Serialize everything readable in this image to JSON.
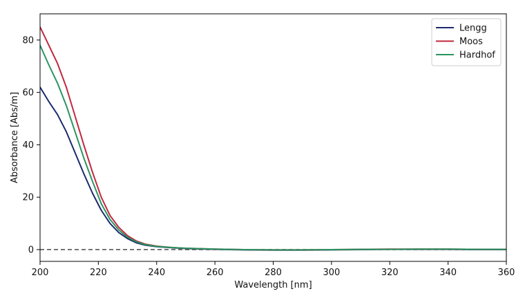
{
  "chart_data": {
    "type": "line",
    "title": "",
    "xlabel": "Wavelength [nm]",
    "ylabel": "Absorbance [Abs/m]",
    "xlim": [
      200,
      360
    ],
    "ylim": [
      -4.5,
      90
    ],
    "xticks": [
      200,
      220,
      240,
      260,
      280,
      300,
      320,
      340,
      360
    ],
    "yticks": [
      0,
      20,
      40,
      60,
      80
    ],
    "grid": false,
    "legend_position": "top-right",
    "baseline": {
      "y": 0,
      "style": "dashed",
      "color": "#555555"
    },
    "series": [
      {
        "name": "Lengg",
        "color": "#1a2a6c",
        "x": [
          200,
          203,
          206,
          209,
          212,
          215,
          218,
          221,
          224,
          227,
          230,
          233,
          236,
          240,
          245,
          250,
          260,
          270,
          280,
          290,
          300,
          310,
          320,
          330,
          340,
          350,
          360
        ],
        "y": [
          62,
          56.5,
          51.5,
          45,
          37,
          29,
          21.5,
          15,
          10,
          6.5,
          4.2,
          2.6,
          1.7,
          1.1,
          0.7,
          0.4,
          0.1,
          -0.1,
          -0.2,
          -0.2,
          -0.1,
          0,
          0.1,
          0.1,
          0.1,
          0,
          0
        ]
      },
      {
        "name": "Moos",
        "color": "#c0283d",
        "x": [
          200,
          203,
          206,
          209,
          212,
          215,
          218,
          221,
          224,
          227,
          230,
          233,
          236,
          240,
          245,
          250,
          260,
          270,
          280,
          290,
          300,
          310,
          320,
          330,
          340,
          350,
          360
        ],
        "y": [
          85,
          78,
          71,
          62,
          51,
          40,
          29.5,
          20,
          13,
          8.5,
          5.3,
          3.3,
          2.1,
          1.3,
          0.8,
          0.5,
          0.2,
          0,
          -0.1,
          -0.1,
          0,
          0.1,
          0.2,
          0.2,
          0.2,
          0.1,
          0.1
        ]
      },
      {
        "name": "Hardhof",
        "color": "#2a9460",
        "x": [
          200,
          203,
          206,
          209,
          212,
          215,
          218,
          221,
          224,
          227,
          230,
          233,
          236,
          240,
          245,
          250,
          260,
          270,
          280,
          290,
          300,
          310,
          320,
          330,
          340,
          350,
          360
        ],
        "y": [
          78,
          70.5,
          63.5,
          55,
          45,
          35,
          26,
          17.5,
          11.5,
          7.5,
          4.7,
          3,
          1.9,
          1.2,
          0.8,
          0.5,
          0.2,
          0,
          -0.1,
          -0.1,
          0,
          0.1,
          0.1,
          0.2,
          0.2,
          0.1,
          0.1
        ]
      }
    ]
  }
}
